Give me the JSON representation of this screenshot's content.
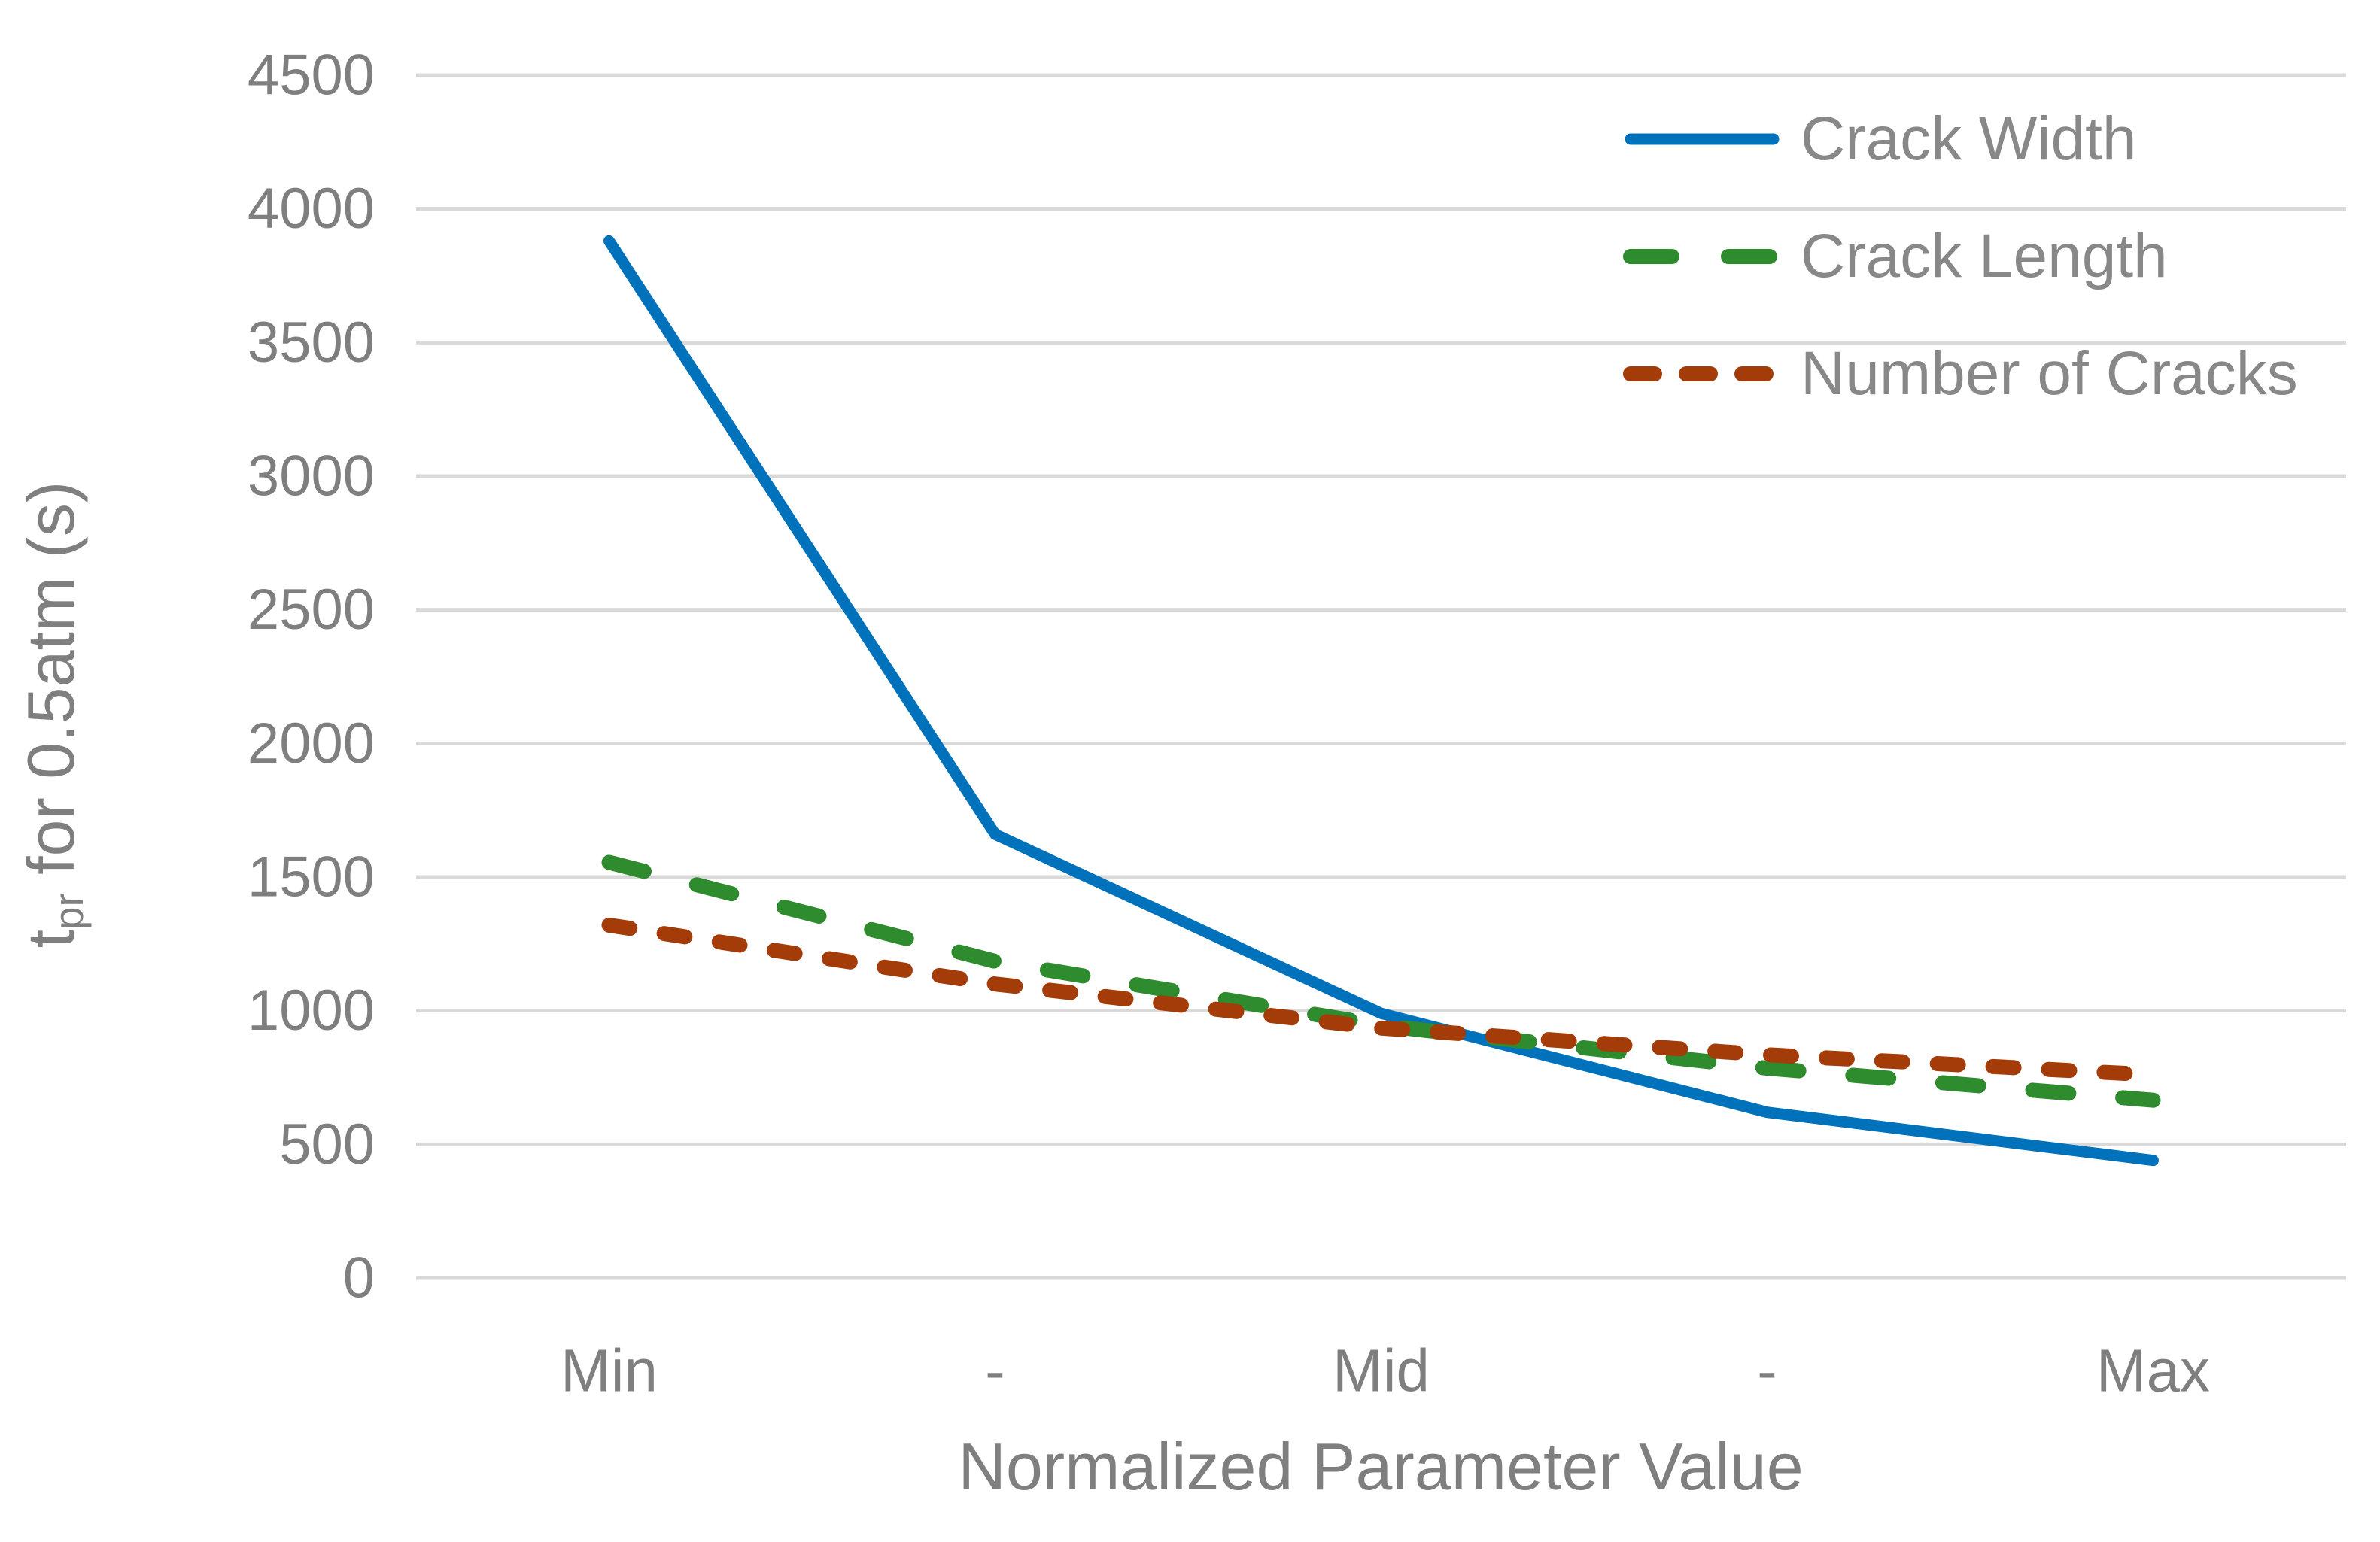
{
  "chart_data": {
    "type": "line",
    "title": "",
    "categories": [
      "Min",
      "-",
      "Mid",
      "-",
      "Max"
    ],
    "series": [
      {
        "name": "Crack Width",
        "values": [
          3880,
          1660,
          990,
          620,
          440
        ],
        "color": "#0072BC",
        "line_width": 15,
        "dash": "none",
        "legend_dash": "none"
      },
      {
        "name": "Crack Length",
        "values": [
          1555,
          1185,
          945,
          785,
          665
        ],
        "color": "#2E8B2E",
        "line_width": 20,
        "dash": "48 72",
        "legend_dash": "55 75"
      },
      {
        "name": "Number of Cracks",
        "values": [
          1320,
          1100,
          935,
          835,
          760
        ],
        "color": "#A33C08",
        "line_width": 20,
        "dash": "28 46",
        "legend_dash": "32 42"
      }
    ],
    "xlabel": "Normalized Parameter Value",
    "ylabel": {
      "prefix": "t",
      "subscript": "pr",
      "suffix": " for 0.5atm (s)"
    },
    "ylim": [
      0,
      4500
    ],
    "ytick_step": 500,
    "grid": true,
    "legend_position": "top-right",
    "styles": {
      "gridline_color": "#D9D9D9",
      "gridline_width": 5,
      "tick_text_color": "#7F7F7F",
      "y_tick_font_size": 76,
      "x_tick_font_size": 80,
      "legend_text_color": "#888888"
    }
  }
}
